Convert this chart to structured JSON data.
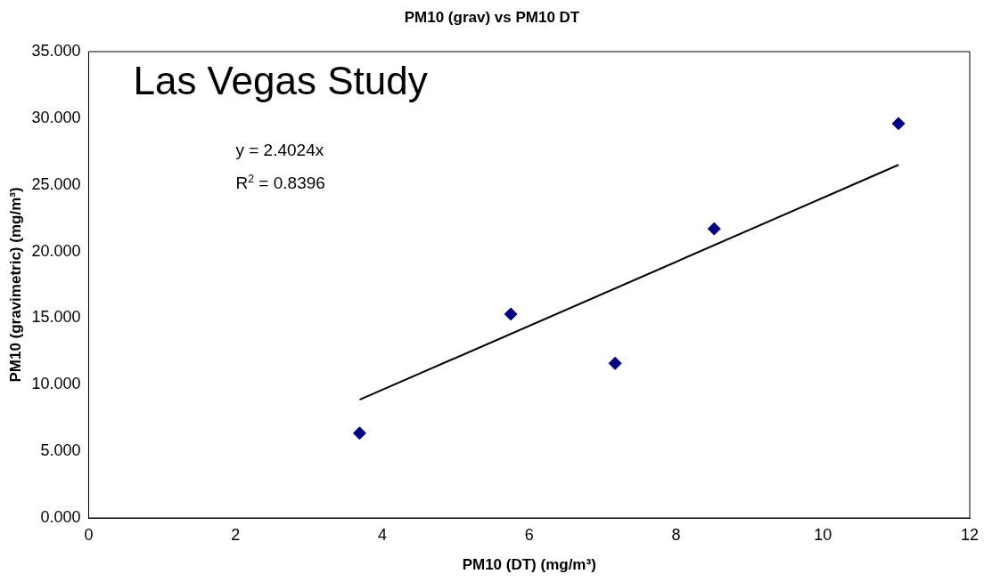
{
  "chart_data": {
    "type": "scatter",
    "title": "PM10 (grav) vs PM10 DT",
    "xlabel": "PM10 (DT) (mg/m³)",
    "ylabel": "PM10 (gravimetric) (mg/m³)",
    "xlim": [
      0,
      12
    ],
    "xticks": [
      0,
      2,
      4,
      6,
      8,
      10,
      12
    ],
    "ylim": [
      0,
      35
    ],
    "yticks": [
      {
        "value": 0,
        "label": "0.000"
      },
      {
        "value": 5,
        "label": "5.000"
      },
      {
        "value": 10,
        "label": "10.000"
      },
      {
        "value": 15,
        "label": "15.000"
      },
      {
        "value": 20,
        "label": "20.000"
      },
      {
        "value": 25,
        "label": "25.000"
      },
      {
        "value": 30,
        "label": "30.000"
      },
      {
        "value": 35,
        "label": "35.000"
      }
    ],
    "grid": false,
    "legend": false,
    "marker": "diamond",
    "annotations": [
      "Las Vegas Study",
      "y = 2.4024x",
      "R$^{2}$ = 0.8396"
    ],
    "series": [
      {
        "color": "#000080",
        "x": [
          3.69,
          5.75,
          7.17,
          8.52,
          11.03
        ],
        "values": [
          6.36,
          15.3,
          11.6,
          21.7,
          29.6
        ]
      },
      {
        "type": "line",
        "color": "#000000",
        "line_style": "solid",
        "marker": "none",
        "x": [
          3.69,
          11.03
        ],
        "values": [
          8.87,
          26.5
        ]
      }
    ]
  }
}
